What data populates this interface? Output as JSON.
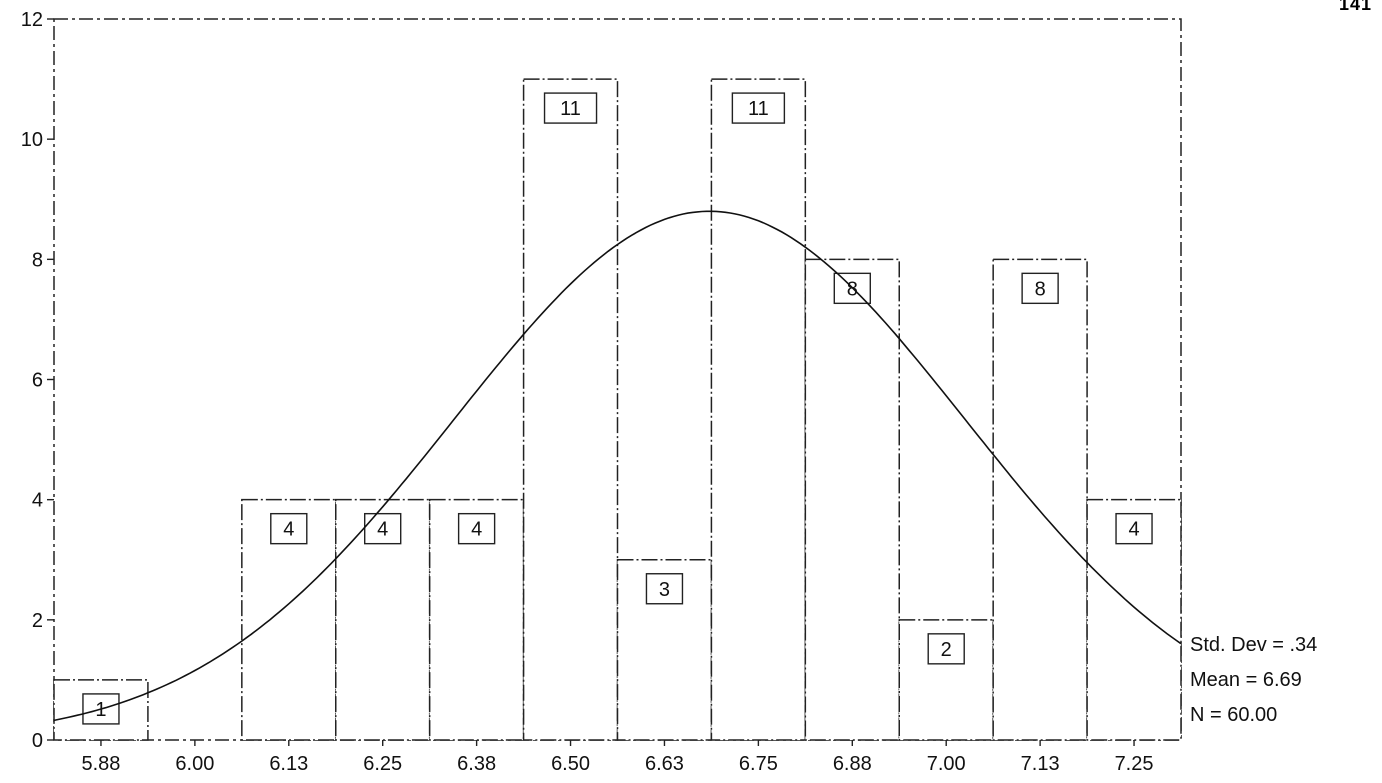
{
  "page_number": "141",
  "stats": {
    "std_dev": "Std. Dev = .34",
    "mean": "Mean = 6.69",
    "n": "N = 60.00"
  },
  "chart_data": {
    "type": "bar",
    "title": "",
    "xlabel": "",
    "ylabel": "",
    "categories": [
      "5.88",
      "6.00",
      "6.13",
      "6.25",
      "6.38",
      "6.50",
      "6.63",
      "6.75",
      "6.88",
      "7.00",
      "7.13",
      "7.25"
    ],
    "values": [
      1,
      0,
      4,
      4,
      4,
      11,
      3,
      11,
      8,
      2,
      8,
      4
    ],
    "data_labels": [
      "1",
      "",
      "4",
      "4",
      "4",
      "11",
      "3",
      "11",
      "8",
      "2",
      "8",
      "4"
    ],
    "ylim": [
      0,
      12
    ],
    "yticks": [
      "0",
      "2",
      "4",
      "6",
      "8",
      "10",
      "12"
    ],
    "normal_curve": {
      "mean": 6.69,
      "std_dev": 0.34,
      "n": 60,
      "bin_width": 0.125
    },
    "grid": false,
    "colors": {
      "bar_stroke": "#222222",
      "bar_fill": "#ffffff",
      "curve": "#111111"
    }
  }
}
